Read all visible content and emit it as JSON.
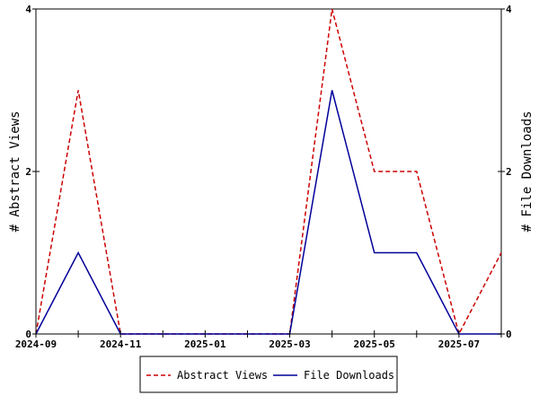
{
  "chart_data": {
    "type": "line",
    "x": [
      "2024-09",
      "2024-10",
      "2024-11",
      "2024-12",
      "2025-01",
      "2025-02",
      "2025-03",
      "2025-04",
      "2025-05",
      "2025-06",
      "2025-07",
      "2025-08"
    ],
    "x_tick_labels": [
      "2024-09",
      "2024-11",
      "2025-01",
      "2025-03",
      "2025-05",
      "2025-07"
    ],
    "y_left_label": "# Abstract Views",
    "y_right_label": "# File Downloads",
    "y_left_ticks": [
      0,
      2,
      4
    ],
    "y_right_ticks": [
      0,
      2,
      4
    ],
    "ylim": [
      0,
      4
    ],
    "grid": false,
    "legend_position": "bottom-center",
    "series": [
      {
        "name": "Abstract Views",
        "axis": "left",
        "style": "dashed",
        "color": "#cc0000",
        "values": [
          0,
          3,
          0,
          0,
          0,
          0,
          0,
          4,
          2,
          2,
          0,
          1
        ]
      },
      {
        "name": "File Downloads",
        "axis": "right",
        "style": "solid",
        "color": "#000099",
        "values": [
          0,
          1,
          0,
          0,
          0,
          0,
          0,
          3,
          1,
          1,
          0,
          0
        ]
      }
    ]
  }
}
